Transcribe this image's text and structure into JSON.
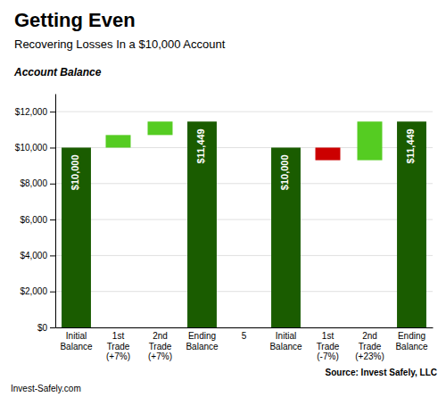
{
  "chart_data": {
    "type": "bar",
    "title": "Getting Even",
    "subtitle": "Recovering Losses In a $10,000 Account",
    "ylabel": "Account Balance",
    "annotations": [
      "Source: Invest Safely, LLC",
      "Invest-Safely.com"
    ],
    "categories": [
      "Initial\nBalance",
      "1st\nTrade\n(+7%)",
      "2nd\nTrade\n(+7%)",
      "Ending\nBalance",
      "5",
      "Initial\nBalance",
      "1st\nTrade\n(-7%)",
      "2nd\nTrade\n(+23%)",
      "Ending\nBalance"
    ],
    "values": [
      10000,
      700,
      749,
      11449,
      null,
      10000,
      700,
      2149,
      11449
    ],
    "bottoms": [
      0,
      10000,
      10700,
      0,
      null,
      0,
      9300,
      9300,
      0
    ],
    "colors": [
      "#1a5c00",
      "#55cc22",
      "#55cc22",
      "#1a5c00",
      null,
      "#1a5c00",
      "#cc0000",
      "#55cc22",
      "#1a5c00"
    ],
    "value_labels": [
      "$10,000",
      null,
      null,
      "$11,449",
      null,
      "$10,000",
      null,
      null,
      "$11,449"
    ],
    "ylim": [
      0,
      13000
    ],
    "yticks": [
      {
        "value": 0,
        "label": "$0"
      },
      {
        "value": 2000,
        "label": "$2,000"
      },
      {
        "value": 4000,
        "label": "$4,000"
      },
      {
        "value": 6000,
        "label": "$6,000"
      },
      {
        "value": 8000,
        "label": "$8,000"
      },
      {
        "value": 10000,
        "label": "$10,000"
      },
      {
        "value": 12000,
        "label": "$12,000"
      }
    ],
    "grid": true
  }
}
